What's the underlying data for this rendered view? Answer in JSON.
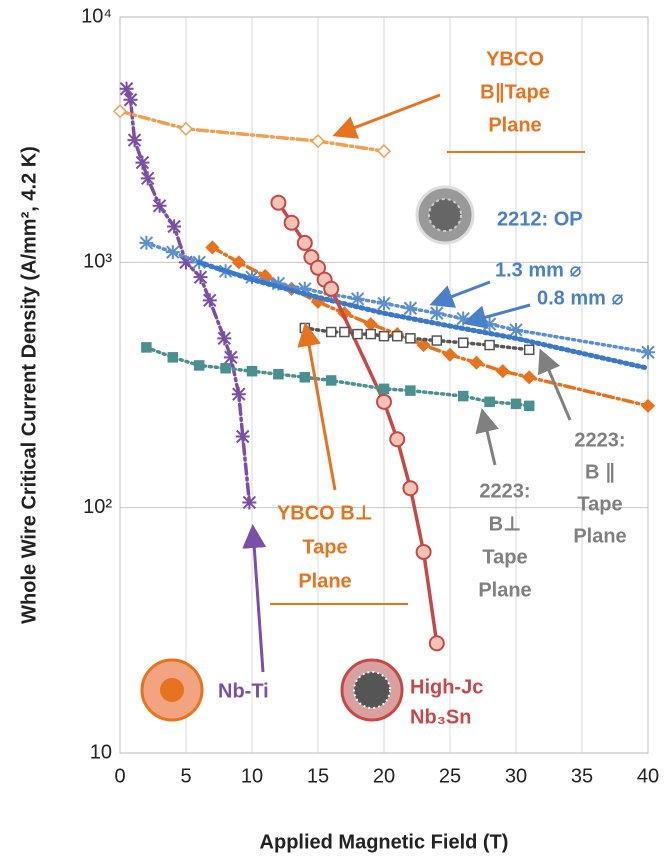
{
  "chart_data": {
    "type": "line",
    "x_label": "Applied Magnetic Field (T)",
    "y_label": "Whole Wire Critical Current Density (A/mm², 4.2 K)",
    "xlim": [
      0,
      40
    ],
    "xticks": [
      0,
      5,
      10,
      15,
      20,
      25,
      30,
      35,
      40
    ],
    "ylim": [
      10,
      10000
    ],
    "yticks": [
      10,
      {
        "value": 100,
        "label": "10²"
      },
      {
        "value": 1000,
        "label": "10³"
      },
      {
        "value": 10000,
        "label": "10⁴"
      }
    ],
    "y_scale": "log",
    "grid": true,
    "series": [
      {
        "color": "#7b4fa6",
        "marker": "star",
        "line_style": "dashdot",
        "x": [
          0.5,
          0.8,
          1.1,
          1.7,
          2.1,
          3,
          4.1,
          5,
          6.1,
          6.8,
          7.9,
          8.4,
          9,
          9.3,
          9.8
        ],
        "values": [
          5100,
          4600,
          3150,
          2550,
          2200,
          1700,
          1400,
          1000,
          870,
          700,
          490,
          410,
          290,
          195,
          105
        ]
      },
      {
        "color": "#f0a050",
        "marker": "open-diamond",
        "line_style": "dashdot",
        "x": [
          0,
          5,
          15,
          20
        ],
        "values": [
          4130,
          3500,
          3120,
          2840
        ]
      },
      {
        "color": "#e8731e",
        "marker": "diamond",
        "line_style": "dashdot",
        "x": [
          7,
          9,
          11,
          13,
          15,
          17,
          19,
          21,
          23,
          25,
          27,
          29,
          31,
          40
        ],
        "values": [
          1150,
          1000,
          880,
          780,
          690,
          620,
          560,
          510,
          460,
          420,
          390,
          360,
          340,
          260
        ]
      },
      {
        "color": "#5b8fd0",
        "marker": "star",
        "line_style": "dotted",
        "x": [
          2,
          4,
          6,
          8,
          10,
          12,
          14,
          16,
          18,
          20,
          22,
          24,
          26,
          28,
          30,
          40
        ],
        "values": [
          1200,
          1100,
          1000,
          920,
          870,
          820,
          780,
          740,
          710,
          680,
          650,
          620,
          590,
          560,
          530,
          430
        ]
      },
      {
        "color": "#3a78c8",
        "marker": "none",
        "line_style": "dotted",
        "x": [
          6,
          10,
          15,
          20,
          25,
          30,
          40
        ],
        "values": [
          1000,
          850,
          720,
          620,
          550,
          490,
          370
        ]
      },
      {
        "color": "#c84848",
        "marker": "circle",
        "line_style": "solid",
        "x": [
          12,
          13,
          14,
          14.5,
          15,
          15.5,
          16,
          20,
          21,
          22,
          23,
          24
        ],
        "values": [
          1750,
          1450,
          1200,
          1050,
          950,
          850,
          780,
          270,
          190,
          120,
          66,
          28
        ]
      },
      {
        "color": "#555555",
        "marker": "open-square",
        "line_style": "dotted",
        "x": [
          14,
          16,
          17,
          18,
          19,
          20,
          21,
          22,
          24,
          26,
          28,
          31
        ],
        "values": [
          540,
          520,
          520,
          510,
          510,
          500,
          500,
          490,
          480,
          470,
          460,
          440
        ]
      },
      {
        "color": "#4a9090",
        "marker": "square",
        "line_style": "dotted",
        "x": [
          2,
          4,
          6,
          8,
          10,
          12,
          14,
          16,
          20,
          22,
          26,
          28,
          30,
          31
        ],
        "values": [
          450,
          410,
          380,
          370,
          360,
          350,
          340,
          330,
          305,
          300,
          285,
          270,
          265,
          260
        ]
      }
    ],
    "annotations": [
      {
        "color": "#e8731e",
        "lines": [
          "YBCO",
          "B∥Tape",
          "Plane"
        ]
      },
      {
        "color": "#4a80c8",
        "lines": [
          "2212: OP"
        ]
      },
      {
        "color": "#4a80c8",
        "lines": [
          "1.3 mm ⌀"
        ]
      },
      {
        "color": "#4a80c8",
        "lines": [
          "0.8 mm ⌀"
        ]
      },
      {
        "color": "#808080",
        "lines": [
          "2223:",
          "B ∥",
          "Tape",
          "Plane"
        ]
      },
      {
        "color": "#808080",
        "lines": [
          "2223:",
          "B⊥",
          "Tape",
          "Plane"
        ]
      },
      {
        "color": "#e8731e",
        "lines": [
          "YBCO B⊥",
          "Tape",
          "Plane"
        ]
      },
      {
        "color": "#7b4fa6",
        "lines": [
          "Nb-Ti"
        ]
      },
      {
        "color": "#c84848",
        "lines": [
          "High-Jc",
          "Nb₃Sn"
        ]
      }
    ]
  }
}
